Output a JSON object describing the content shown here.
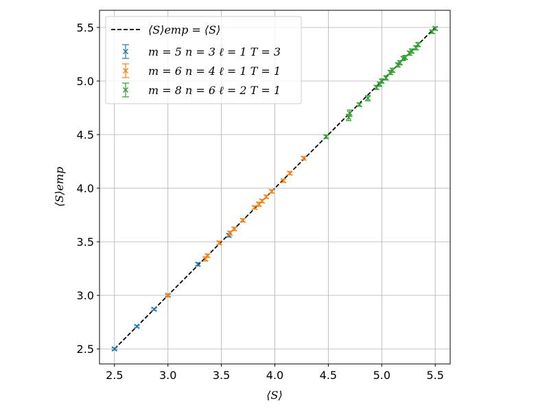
{
  "chart_data": {
    "type": "scatter",
    "title": "",
    "xlabel": "⟨S⟩",
    "ylabel": "⟨S⟩emp",
    "xlim": [
      2.36,
      5.64
    ],
    "ylim": [
      2.36,
      5.66
    ],
    "xticks": [
      "2.5",
      "3.0",
      "3.5",
      "4.0",
      "4.5",
      "5.0",
      "5.5"
    ],
    "yticks": [
      "2.5",
      "3.0",
      "3.5",
      "4.0",
      "4.5",
      "5.0",
      "5.5"
    ],
    "xtick_values": [
      2.5,
      3.0,
      3.5,
      4.0,
      4.5,
      5.0,
      5.5
    ],
    "ytick_values": [
      2.5,
      3.0,
      3.5,
      4.0,
      4.5,
      5.0,
      5.5
    ],
    "grid": true,
    "legend_position": "top-left",
    "reference_line": {
      "label": "⟨S⟩emp = ⟨S⟩",
      "x": [
        2.5,
        5.5
      ],
      "y": [
        2.5,
        5.5
      ],
      "color": "#000000",
      "style": "dashed"
    },
    "series": [
      {
        "name": "m = 5  n = 3  ℓ = 1  T = 3",
        "color": "#1f77b4",
        "marker": "x",
        "x": [
          2.5,
          2.71,
          2.87,
          3.0,
          3.28,
          3.57
        ],
        "y": [
          2.5,
          2.71,
          2.87,
          3.0,
          3.29,
          3.56
        ],
        "yerr": [
          0.01,
          0.01,
          0.01,
          0.01,
          0.015,
          0.015
        ]
      },
      {
        "name": "m = 6  n = 4  ℓ = 1  T = 1",
        "color": "#ff7f0e",
        "marker": "x",
        "x": [
          3.0,
          3.35,
          3.37,
          3.48,
          3.58,
          3.62,
          3.7,
          3.81,
          3.85,
          3.88,
          3.92,
          3.97,
          4.08,
          4.14,
          4.27
        ],
        "y": [
          3.0,
          3.34,
          3.37,
          3.49,
          3.58,
          3.62,
          3.7,
          3.82,
          3.85,
          3.88,
          3.92,
          3.97,
          4.07,
          4.14,
          4.28
        ],
        "yerr": [
          0.015,
          0.02,
          0.015,
          0.015,
          0.02,
          0.015,
          0.015,
          0.015,
          0.02,
          0.015,
          0.015,
          0.015,
          0.015,
          0.015,
          0.015
        ]
      },
      {
        "name": "m = 8  n = 6  ℓ = 2  T = 1",
        "color": "#2ca02c",
        "marker": "x",
        "x": [
          4.48,
          4.69,
          4.7,
          4.79,
          4.87,
          4.95,
          4.98,
          5.0,
          5.04,
          5.08,
          5.1,
          5.15,
          5.17,
          5.2,
          5.22,
          5.26,
          5.28,
          5.32,
          5.34,
          5.47,
          5.5
        ],
        "y": [
          4.48,
          4.66,
          4.7,
          4.78,
          4.84,
          4.94,
          4.97,
          5.0,
          5.03,
          5.08,
          5.1,
          5.15,
          5.17,
          5.21,
          5.22,
          5.26,
          5.28,
          5.31,
          5.34,
          5.46,
          5.49
        ],
        "yerr": [
          0.015,
          0.03,
          0.03,
          0.015,
          0.025,
          0.02,
          0.02,
          0.02,
          0.02,
          0.02,
          0.02,
          0.02,
          0.02,
          0.02,
          0.02,
          0.02,
          0.02,
          0.02,
          0.02,
          0.015,
          0.015
        ]
      }
    ]
  }
}
